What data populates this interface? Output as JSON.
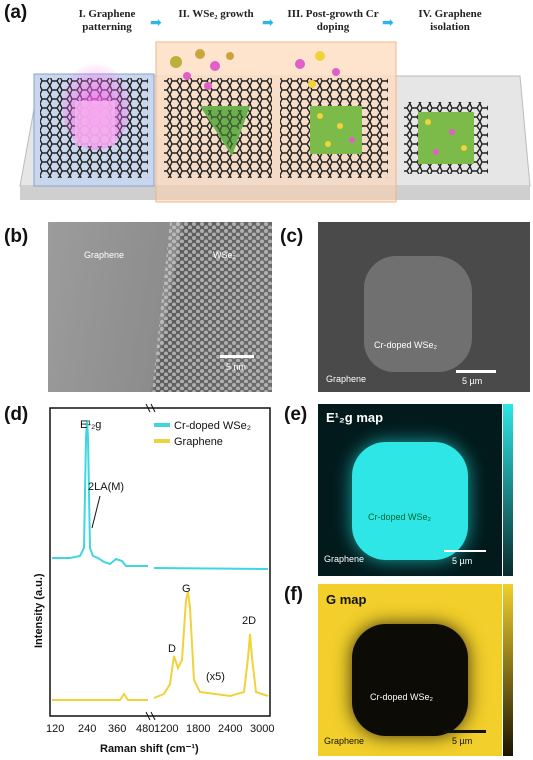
{
  "panel_labels": {
    "a": "(a)",
    "b": "(b)",
    "c": "(c)",
    "d": "(d)",
    "e": "(e)",
    "f": "(f)"
  },
  "steps": [
    {
      "num": "I.",
      "text": "Graphene patterning"
    },
    {
      "num": "II.",
      "text": "WSe₂ growth"
    },
    {
      "num": "III.",
      "text": "Post-growth Cr doping"
    },
    {
      "num": "IV.",
      "text": "Graphene isolation"
    }
  ],
  "panel_b": {
    "left_label": "Graphene",
    "right_label": "WSe₂",
    "scale": "5 nm"
  },
  "panel_c": {
    "inner_label": "Cr-doped WSe₂",
    "corner_label": "Graphene",
    "scale": "5 µm"
  },
  "panel_e": {
    "title": "E¹₂g map",
    "inner_label": "Cr-doped WSe₂",
    "corner_label": "Graphene",
    "scale": "5 µm",
    "color": "#2ee6e6"
  },
  "panel_f": {
    "title": "G map",
    "inner_label": "Cr-doped WSe₂",
    "corner_label": "Graphene",
    "scale": "5 µm",
    "color": "#f2cf2a"
  },
  "colors": {
    "cyan": "#3fd6e0",
    "yellow": "#f0d23a",
    "arrow": "#29b6e8"
  },
  "chart_data": {
    "type": "line",
    "xlabel": "Raman shift (cm⁻¹)",
    "ylabel": "Intensity (a.u.)",
    "x_ticks_left": [
      120,
      240,
      360,
      480
    ],
    "x_ticks_right": [
      1200,
      1800,
      2400,
      3000
    ],
    "axis_break": true,
    "series": [
      {
        "name": "Cr-doped WSe₂",
        "color": "#3fd6e0"
      },
      {
        "name": "Graphene",
        "color": "#f0d23a"
      }
    ],
    "annotations": [
      "E¹₂g",
      "2LA(M)",
      "D",
      "G",
      "2D",
      "(x5)"
    ]
  }
}
